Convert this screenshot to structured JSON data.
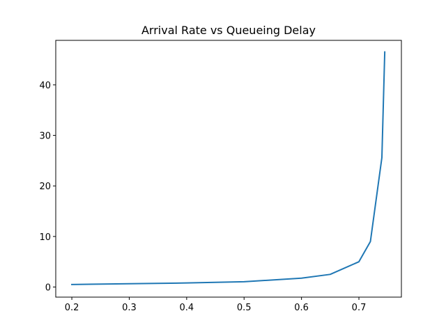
{
  "chart_data": {
    "type": "line",
    "title": "Arrival Rate vs Queueing Delay",
    "xlabel": "",
    "ylabel": "",
    "xlim": [
      0.172,
      0.774
    ],
    "ylim": [
      -2.0,
      48.8
    ],
    "x_ticks": [
      0.2,
      0.3,
      0.4,
      0.5,
      0.6,
      0.7
    ],
    "x_tick_labels": [
      "0.2",
      "0.3",
      "0.4",
      "0.5",
      "0.6",
      "0.7"
    ],
    "y_ticks": [
      0,
      10,
      20,
      30,
      40
    ],
    "y_tick_labels": [
      "0",
      "10",
      "20",
      "30",
      "40"
    ],
    "grid": false,
    "series": [
      {
        "color": "#1f77b4",
        "x": [
          0.2,
          0.3,
          0.4,
          0.5,
          0.6,
          0.65,
          0.7,
          0.72,
          0.74,
          0.745
        ],
        "y": [
          0.5,
          0.65,
          0.8,
          1.05,
          1.75,
          2.5,
          5.0,
          9.0,
          25.6,
          46.5
        ]
      }
    ]
  }
}
